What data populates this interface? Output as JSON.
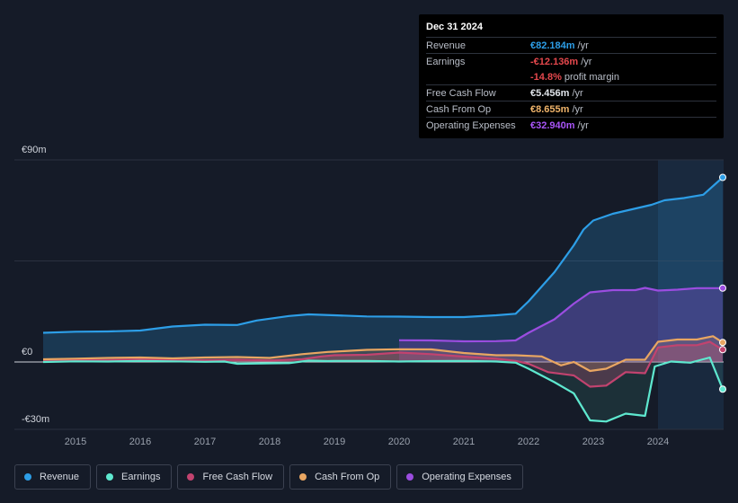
{
  "tooltip": {
    "date": "Dec 31 2024",
    "rows": [
      {
        "label": "Revenue",
        "value": "€82.184m",
        "unit": "/yr",
        "color": "#2d9ee7"
      },
      {
        "label": "Earnings",
        "value": "-€12.136m",
        "unit": "/yr",
        "color": "#e5484d"
      },
      {
        "label": "",
        "value": "-14.8%",
        "unit": "profit margin",
        "color": "#e5484d"
      },
      {
        "label": "Free Cash Flow",
        "value": "€5.456m",
        "unit": "/yr",
        "color": "#e0e4ea"
      },
      {
        "label": "Cash From Op",
        "value": "€8.655m",
        "unit": "/yr",
        "color": "#f0b46a"
      },
      {
        "label": "Operating Expenses",
        "value": "€32.940m",
        "unit": "/yr",
        "color": "#a855f7"
      }
    ]
  },
  "legend": [
    {
      "label": "Revenue",
      "color": "#2d9ee7"
    },
    {
      "label": "Earnings",
      "color": "#5ee8cf"
    },
    {
      "label": "Free Cash Flow",
      "color": "#c2436f"
    },
    {
      "label": "Cash From Op",
      "color": "#e9a662"
    },
    {
      "label": "Operating Expenses",
      "color": "#9b4de0"
    }
  ],
  "chart_data": {
    "type": "area",
    "title": "",
    "xlabel": "",
    "ylabel": "",
    "ylim": [
      -30,
      90
    ],
    "y_tick_labels": [
      "€90m",
      "€0",
      "-€30m"
    ],
    "x_tick_labels": [
      "2015",
      "2016",
      "2017",
      "2018",
      "2019",
      "2020",
      "2021",
      "2022",
      "2023",
      "2024"
    ],
    "forecast_region_start": 2024.0,
    "series": [
      {
        "name": "Revenue",
        "color": "#2d9ee7",
        "points": [
          [
            2014.5,
            13
          ],
          [
            2015,
            13.5
          ],
          [
            2015.5,
            13.6
          ],
          [
            2016,
            14
          ],
          [
            2016.5,
            15.8
          ],
          [
            2017,
            16.6
          ],
          [
            2017.5,
            16.5
          ],
          [
            2017.8,
            18.5
          ],
          [
            2018.3,
            20.5
          ],
          [
            2018.6,
            21.2
          ],
          [
            2019,
            20.8
          ],
          [
            2019.5,
            20.3
          ],
          [
            2020,
            20.2
          ],
          [
            2020.5,
            20
          ],
          [
            2021,
            20
          ],
          [
            2021.5,
            20.8
          ],
          [
            2021.8,
            21.5
          ],
          [
            2022,
            27
          ],
          [
            2022.4,
            40
          ],
          [
            2022.7,
            52
          ],
          [
            2022.85,
            59
          ],
          [
            2023,
            63
          ],
          [
            2023.3,
            66
          ],
          [
            2023.6,
            68
          ],
          [
            2023.9,
            70
          ],
          [
            2024.1,
            72
          ],
          [
            2024.4,
            73
          ],
          [
            2024.7,
            74.5
          ],
          [
            2025,
            82.2
          ]
        ]
      },
      {
        "name": "Earnings",
        "color": "#5ee8cf",
        "points": [
          [
            2014.5,
            0
          ],
          [
            2015,
            0.3
          ],
          [
            2015.5,
            0.2
          ],
          [
            2016,
            0.5
          ],
          [
            2016.5,
            0.3
          ],
          [
            2017,
            0.1
          ],
          [
            2017.3,
            0.2
          ],
          [
            2017.5,
            -0.8
          ],
          [
            2018,
            -0.6
          ],
          [
            2018.3,
            -0.5
          ],
          [
            2018.6,
            0.6
          ],
          [
            2018.9,
            0.4
          ],
          [
            2019,
            0.5
          ],
          [
            2019.5,
            0.5
          ],
          [
            2020,
            0.2
          ],
          [
            2020.5,
            0.4
          ],
          [
            2021,
            0.5
          ],
          [
            2021.5,
            0.2
          ],
          [
            2021.8,
            -0.3
          ],
          [
            2022,
            -3
          ],
          [
            2022.4,
            -9
          ],
          [
            2022.7,
            -14
          ],
          [
            2022.95,
            -26
          ],
          [
            2023.2,
            -26.5
          ],
          [
            2023.5,
            -23
          ],
          [
            2023.8,
            -24
          ],
          [
            2023.95,
            -2
          ],
          [
            2024.2,
            0.2
          ],
          [
            2024.5,
            -0.3
          ],
          [
            2024.8,
            2
          ],
          [
            2025,
            -12.1
          ]
        ]
      },
      {
        "name": "Free Cash Flow",
        "color": "#c2436f",
        "points": [
          [
            2014.5,
            0.5
          ],
          [
            2015,
            0.8
          ],
          [
            2015.5,
            0.8
          ],
          [
            2016,
            1.2
          ],
          [
            2016.5,
            0.8
          ],
          [
            2017,
            0.8
          ],
          [
            2017.5,
            1.0
          ],
          [
            2018,
            0.7
          ],
          [
            2018.5,
            1.2
          ],
          [
            2018.8,
            2.5
          ],
          [
            2019,
            3.0
          ],
          [
            2019.5,
            3.2
          ],
          [
            2020,
            4.2
          ],
          [
            2020.5,
            3.5
          ],
          [
            2021,
            2.4
          ],
          [
            2021.5,
            1.5
          ],
          [
            2021.8,
            0.5
          ],
          [
            2022,
            -0.8
          ],
          [
            2022.3,
            -4.5
          ],
          [
            2022.7,
            -6
          ],
          [
            2022.95,
            -11
          ],
          [
            2023.2,
            -10.5
          ],
          [
            2023.5,
            -4.5
          ],
          [
            2023.8,
            -5
          ],
          [
            2024,
            6.5
          ],
          [
            2024.3,
            7.5
          ],
          [
            2024.6,
            7.5
          ],
          [
            2024.8,
            9
          ],
          [
            2025,
            5.5
          ]
        ]
      },
      {
        "name": "Cash From Op",
        "color": "#e9a662",
        "points": [
          [
            2014.5,
            1.2
          ],
          [
            2015,
            1.5
          ],
          [
            2015.5,
            1.8
          ],
          [
            2016,
            2.0
          ],
          [
            2016.5,
            1.6
          ],
          [
            2017,
            2.0
          ],
          [
            2017.5,
            2.2
          ],
          [
            2018,
            1.8
          ],
          [
            2018.5,
            3.5
          ],
          [
            2018.9,
            4.5
          ],
          [
            2019,
            4.6
          ],
          [
            2019.5,
            5.4
          ],
          [
            2020,
            5.7
          ],
          [
            2020.5,
            5.6
          ],
          [
            2021,
            4.0
          ],
          [
            2021.5,
            3.0
          ],
          [
            2021.8,
            3.0
          ],
          [
            2022.2,
            2.5
          ],
          [
            2022.5,
            -1.5
          ],
          [
            2022.7,
            0
          ],
          [
            2022.95,
            -4
          ],
          [
            2023.2,
            -3
          ],
          [
            2023.5,
            1
          ],
          [
            2023.8,
            1
          ],
          [
            2024,
            9
          ],
          [
            2024.3,
            10
          ],
          [
            2024.6,
            10
          ],
          [
            2024.85,
            11.5
          ],
          [
            2025,
            8.7
          ]
        ]
      },
      {
        "name": "Operating Expenses",
        "color": "#9b4de0",
        "points": [
          [
            2020,
            9.7
          ],
          [
            2020.5,
            9.6
          ],
          [
            2021,
            9.2
          ],
          [
            2021.5,
            9.3
          ],
          [
            2021.8,
            9.6
          ],
          [
            2022,
            13
          ],
          [
            2022.4,
            19
          ],
          [
            2022.7,
            26
          ],
          [
            2022.95,
            31
          ],
          [
            2023.3,
            32
          ],
          [
            2023.65,
            32
          ],
          [
            2023.8,
            33
          ],
          [
            2024,
            31.8
          ],
          [
            2024.3,
            32.2
          ],
          [
            2024.6,
            32.9
          ],
          [
            2025,
            32.9
          ]
        ]
      }
    ]
  }
}
